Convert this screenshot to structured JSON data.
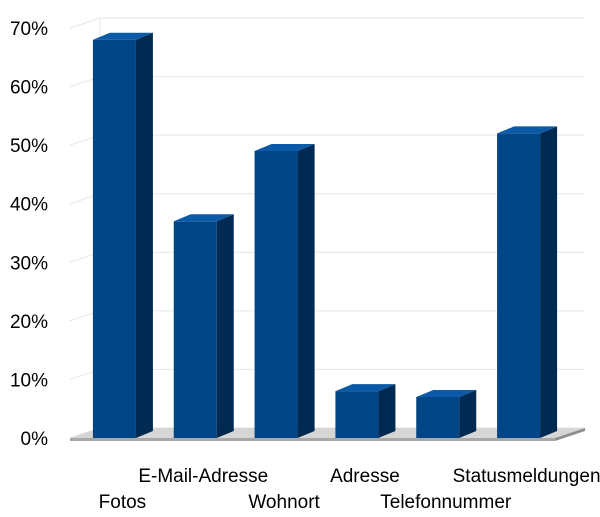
{
  "chart_data": {
    "type": "bar",
    "title": "",
    "xlabel": "",
    "ylabel": "",
    "categories": [
      "Fotos",
      "E-Mail-Adresse",
      "Wohnort",
      "Adresse",
      "Telefonnummer",
      "Statusmeldungen"
    ],
    "values": [
      0.68,
      0.37,
      0.49,
      0.08,
      0.07,
      0.52
    ],
    "ylim": [
      0,
      0.7
    ],
    "yticks": [
      "0%",
      "10%",
      "20%",
      "30%",
      "40%",
      "50%",
      "60%",
      "70%"
    ],
    "grid": true,
    "legend": "none",
    "colors": {
      "bar_front": "#004586",
      "bar_side": "#002a52",
      "bar_top": "#0a5aa8",
      "floor": "#d6d6d6",
      "grid": "#e6e6e6"
    }
  }
}
